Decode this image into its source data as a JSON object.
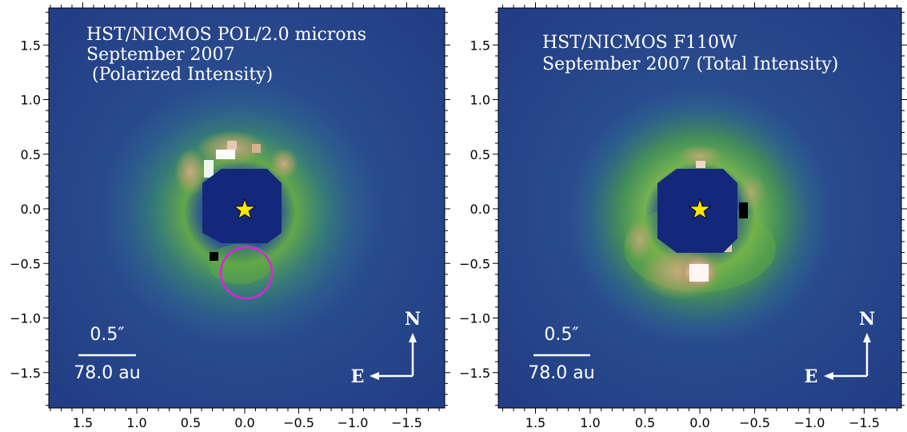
{
  "figure": {
    "panels": [
      {
        "title_lines": [
          "HST/NICMOS POL/2.0 microns",
          "September 2007",
          " (Polarized Intensity)"
        ],
        "scale_bar": {
          "arcsec_label": "0.5″",
          "au_label": "78.0 au"
        },
        "compass": {
          "north": "N",
          "east": "E"
        },
        "marker_circle_color": "#e020e0"
      },
      {
        "title_lines": [
          "HST/NICMOS F110W",
          "September 2007 (Total Intensity)"
        ],
        "scale_bar": {
          "arcsec_label": "0.5″",
          "au_label": "78.0 au"
        },
        "compass": {
          "north": "N",
          "east": "E"
        }
      }
    ],
    "y_ticks": [
      "1.5",
      "1.0",
      "0.5",
      "0.0",
      "−0.5",
      "−1.0",
      "−1.5"
    ],
    "x_ticks": [
      "1.5",
      "1.0",
      "0.5",
      "0.0",
      "−0.5",
      "−1.0",
      "−1.5"
    ],
    "colors": {
      "background": "#243f87",
      "mask": "#13287a",
      "star": "#ffe800",
      "ring_green": "#5fae3d",
      "ring_tan": "#c9a27a",
      "peak_white": "#fff6f4",
      "text": "#ffffff"
    }
  }
}
